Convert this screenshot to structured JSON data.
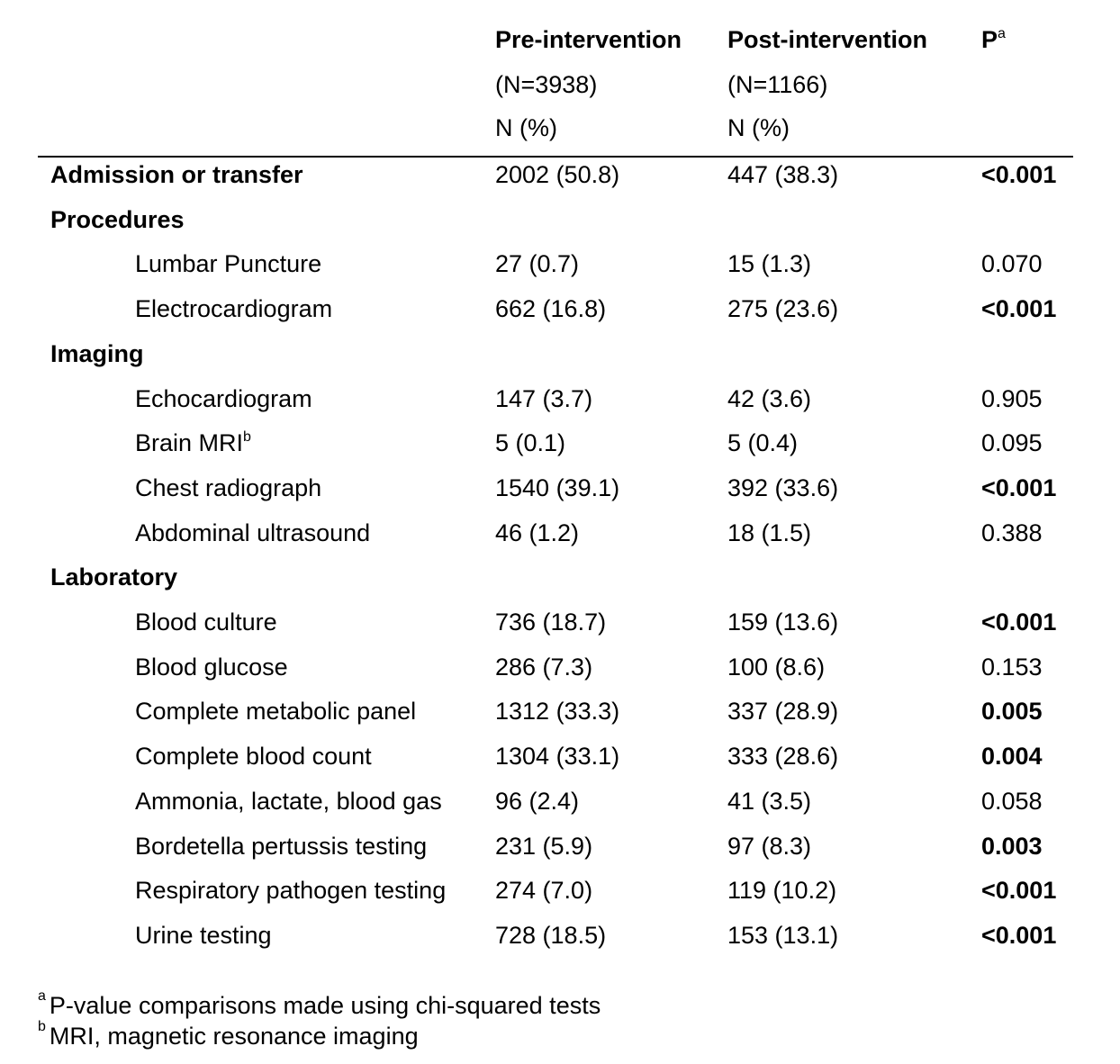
{
  "header": {
    "pre": {
      "title": "Pre-intervention",
      "n": "(N=3938)",
      "unit": "N (%)"
    },
    "post": {
      "title": "Post-intervention",
      "n": "(N=1166)",
      "unit": "N (%)"
    },
    "p": {
      "title": "P",
      "sup": "a"
    }
  },
  "rows": [
    {
      "label": "Admission or transfer",
      "sup": "",
      "pre": "2002 (50.8)",
      "post": "447 (38.3)",
      "p": "<0.001",
      "p_bold": true,
      "type": "section-data"
    },
    {
      "label": "Procedures",
      "sup": "",
      "pre": "",
      "post": "",
      "p": "",
      "p_bold": false,
      "type": "section"
    },
    {
      "label": "Lumbar Puncture",
      "sup": "",
      "pre": "27 (0.7)",
      "post": "15 (1.3)",
      "p": "0.070",
      "p_bold": false,
      "type": "item"
    },
    {
      "label": "Electrocardiogram",
      "sup": "",
      "pre": "662 (16.8)",
      "post": "275 (23.6)",
      "p": "<0.001",
      "p_bold": true,
      "type": "item"
    },
    {
      "label": "Imaging",
      "sup": "",
      "pre": "",
      "post": "",
      "p": "",
      "p_bold": false,
      "type": "section"
    },
    {
      "label": "Echocardiogram",
      "sup": "",
      "pre": "147 (3.7)",
      "post": "42 (3.6)",
      "p": "0.905",
      "p_bold": false,
      "type": "item"
    },
    {
      "label": "Brain MRI",
      "sup": "b",
      "pre": "5 (0.1)",
      "post": "5 (0.4)",
      "p": "0.095",
      "p_bold": false,
      "type": "item"
    },
    {
      "label": "Chest radiograph",
      "sup": "",
      "pre": "1540 (39.1)",
      "post": "392 (33.6)",
      "p": "<0.001",
      "p_bold": true,
      "type": "item"
    },
    {
      "label": "Abdominal ultrasound",
      "sup": "",
      "pre": "46 (1.2)",
      "post": "18 (1.5)",
      "p": "0.388",
      "p_bold": false,
      "type": "item"
    },
    {
      "label": "Laboratory",
      "sup": "",
      "pre": "",
      "post": "",
      "p": "",
      "p_bold": false,
      "type": "section"
    },
    {
      "label": "Blood culture",
      "sup": "",
      "pre": "736 (18.7)",
      "post": "159 (13.6)",
      "p": "<0.001",
      "p_bold": true,
      "type": "item"
    },
    {
      "label": "Blood glucose",
      "sup": "",
      "pre": "286 (7.3)",
      "post": "100 (8.6)",
      "p": "0.153",
      "p_bold": false,
      "type": "item"
    },
    {
      "label": "Complete metabolic panel",
      "sup": "",
      "pre": "1312 (33.3)",
      "post": "337 (28.9)",
      "p": "0.005",
      "p_bold": true,
      "type": "item"
    },
    {
      "label": "Complete blood count",
      "sup": "",
      "pre": "1304 (33.1)",
      "post": "333 (28.6)",
      "p": "0.004",
      "p_bold": true,
      "type": "item"
    },
    {
      "label": "Ammonia, lactate, blood gas",
      "sup": "",
      "pre": "96 (2.4)",
      "post": "41 (3.5)",
      "p": "0.058",
      "p_bold": false,
      "type": "item"
    },
    {
      "label": "Bordetella pertussis testing",
      "sup": "",
      "pre": "231 (5.9)",
      "post": "97 (8.3)",
      "p": "0.003",
      "p_bold": true,
      "type": "item"
    },
    {
      "label": "Respiratory pathogen testing",
      "sup": "",
      "pre": "274 (7.0)",
      "post": "119 (10.2)",
      "p": "<0.001",
      "p_bold": true,
      "type": "item"
    },
    {
      "label": "Urine testing",
      "sup": "",
      "pre": "728 (18.5)",
      "post": "153 (13.1)",
      "p": "<0.001",
      "p_bold": true,
      "type": "item"
    }
  ],
  "footnotes": [
    {
      "mark": "a",
      "text": "P-value comparisons made using chi-squared tests"
    },
    {
      "mark": "b",
      "text": "MRI, magnetic resonance imaging"
    }
  ]
}
